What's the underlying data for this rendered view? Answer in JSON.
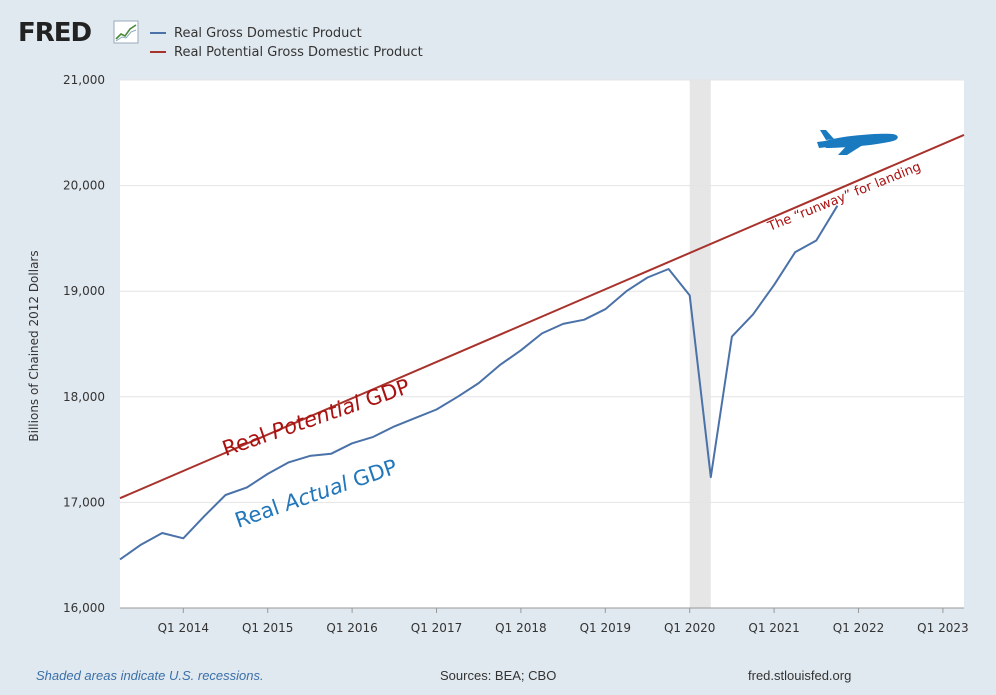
{
  "logo": {
    "text": "FRED"
  },
  "colors": {
    "actual": "#4a72a8",
    "potential": "#a8322c",
    "grid": "#e4e4e4",
    "recession": "#e6e6e6",
    "plane": "#1a7ac0",
    "annot_actual": "#2277bb",
    "annot_potential": "#aa1111"
  },
  "legend": [
    {
      "label": "Real Gross Domestic Product",
      "color": "#4a72a8"
    },
    {
      "label": "Real Potential Gross Domestic Product",
      "color": "#a8322c"
    }
  ],
  "chart_data": {
    "type": "line",
    "ylabel": "Billions of Chained 2012 Dollars",
    "xlabel": "",
    "ylim": [
      16000,
      21000
    ],
    "xlim": [
      2013.25,
      2023.25
    ],
    "yticks": [
      16000,
      17000,
      18000,
      19000,
      20000,
      21000
    ],
    "ytick_labels": [
      "16,000",
      "17,000",
      "18,000",
      "19,000",
      "20,000",
      "21,000"
    ],
    "xticks": [
      2014,
      2015,
      2016,
      2017,
      2018,
      2019,
      2020,
      2021,
      2022,
      2023
    ],
    "xtick_labels": [
      "Q1 2014",
      "Q1 2015",
      "Q1 2016",
      "Q1 2017",
      "Q1 2018",
      "Q1 2019",
      "Q1 2020",
      "Q1 2021",
      "Q1 2022",
      "Q1 2023"
    ],
    "recessions": [
      [
        2020.0,
        2020.25
      ]
    ],
    "series": [
      {
        "name": "Real Gross Domestic Product",
        "x": [
          2013.25,
          2013.5,
          2013.75,
          2014.0,
          2014.25,
          2014.5,
          2014.75,
          2015.0,
          2015.25,
          2015.5,
          2015.75,
          2016.0,
          2016.25,
          2016.5,
          2016.75,
          2017.0,
          2017.25,
          2017.5,
          2017.75,
          2018.0,
          2018.25,
          2018.5,
          2018.75,
          2019.0,
          2019.25,
          2019.5,
          2019.75,
          2020.0,
          2020.25,
          2020.5,
          2020.75,
          2021.0,
          2021.25,
          2021.5,
          2021.75
        ],
        "values": [
          16460,
          16600,
          16710,
          16660,
          16870,
          17070,
          17140,
          17270,
          17380,
          17440,
          17460,
          17560,
          17620,
          17720,
          17800,
          17880,
          18000,
          18130,
          18300,
          18440,
          18600,
          18690,
          18730,
          18830,
          19000,
          19130,
          19210,
          18960,
          17240,
          18570,
          18780,
          19060,
          19370,
          19480,
          19810
        ]
      },
      {
        "name": "Real Potential Gross Domestic Product",
        "x": [
          2013.25,
          2023.25
        ],
        "values": [
          17040,
          20480
        ]
      }
    ],
    "annotations": [
      {
        "text_plain": "Real ",
        "text_italic": "Potential",
        "text_tail": " GDP",
        "x": 2015.6,
        "y": 17740,
        "angle": -19,
        "color": "#aa1111"
      },
      {
        "text_plain": "Real ",
        "text_italic": "Actual",
        "text_tail": " GDP",
        "x": 2015.6,
        "y": 17020,
        "angle": -19,
        "color": "#2277bb"
      },
      {
        "text": "The “runway” for landing",
        "x": 2021.85,
        "y": 19860,
        "angle": -22,
        "color": "#aa1111"
      }
    ]
  },
  "footer": {
    "note": "Shaded areas indicate U.S. recessions.",
    "sources": "Sources: BEA; CBO",
    "url": "fred.stlouisfed.org"
  }
}
